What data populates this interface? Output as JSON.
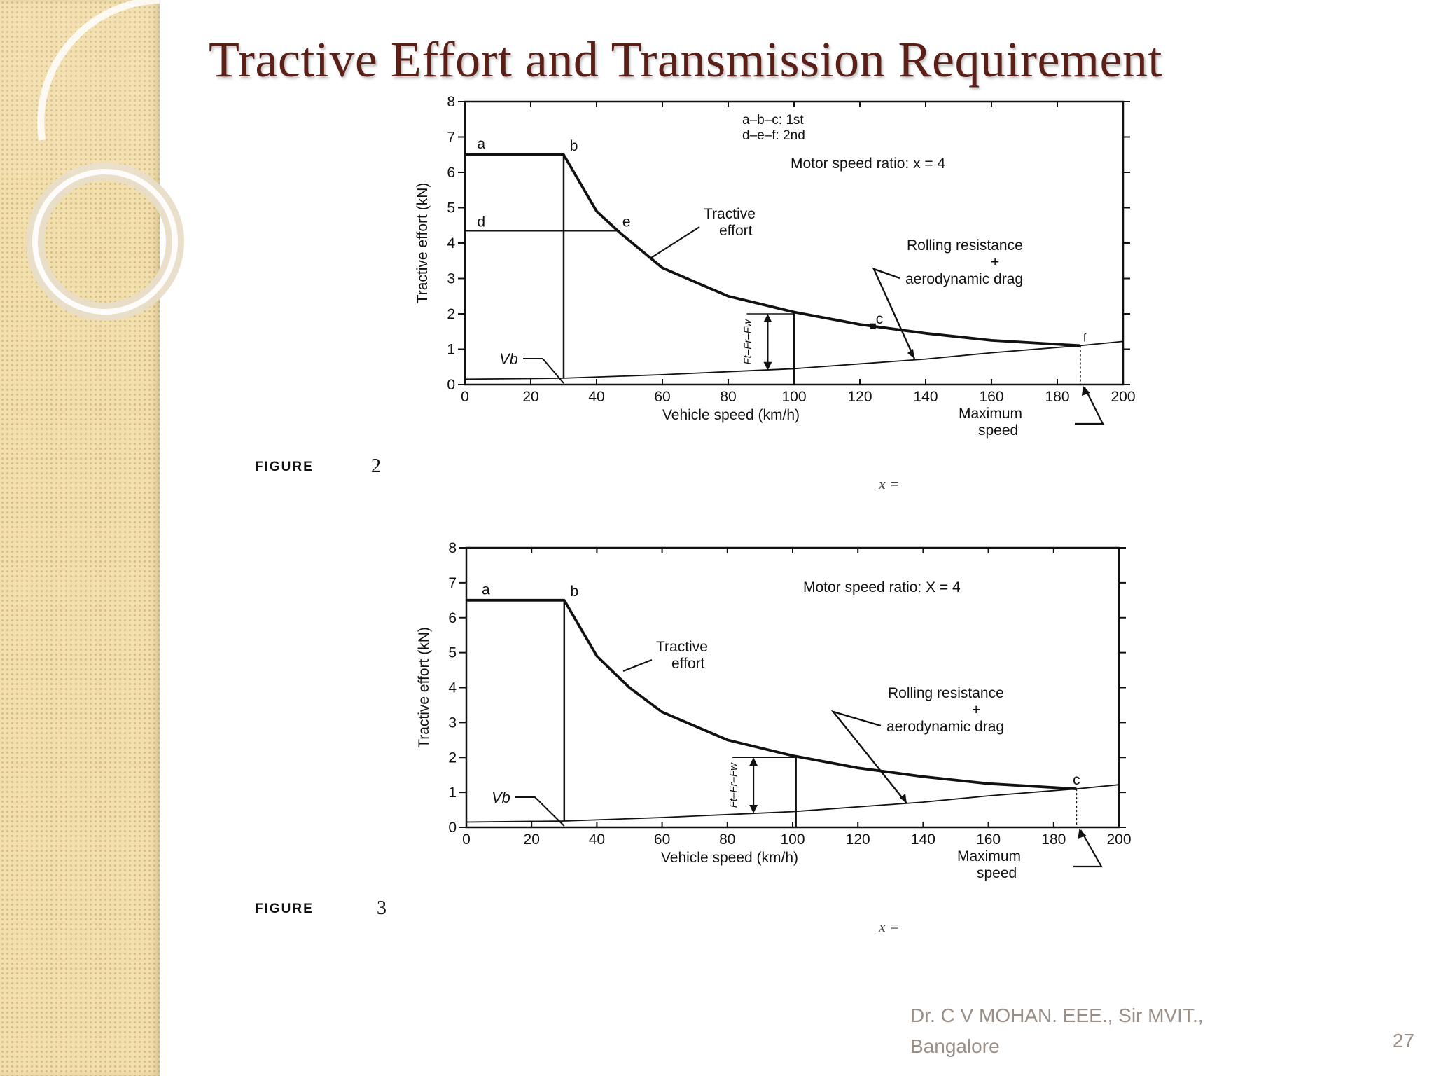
{
  "slide": {
    "title": "Tractive Effort and Transmission Requirement",
    "author_line1": "Dr.  C V MOHAN.  EEE., Sir MVIT.,",
    "author_line2": "Bangalore",
    "page_number": "27"
  },
  "figures": [
    {
      "label": "FIGURE",
      "number": "2",
      "x_caption": "x ="
    },
    {
      "label": "FIGURE",
      "number": "3",
      "x_caption": "x ="
    }
  ],
  "colors": {
    "title": "#5a1f17",
    "sidebar": "#f2dfae",
    "footer_text": "#9a8f86",
    "plot_ink": "#111111"
  },
  "chart_data": [
    {
      "type": "line",
      "ylabel": "Tractive effort (kN)",
      "xlabel": "Vehicle speed (km/h)",
      "xlim": [
        0,
        200
      ],
      "ylim": [
        0,
        8
      ],
      "xticks": [
        "0",
        "20",
        "40",
        "60",
        "80",
        "100",
        "120",
        "140",
        "160",
        "180",
        "200"
      ],
      "yticks": [
        "0",
        "1",
        "2",
        "3",
        "4",
        "5",
        "6",
        "7",
        "8"
      ],
      "legend_line1": "a–b–c:  1st",
      "legend_line2": "d–e–f:  2nd",
      "ratio_text": "Motor speed ratio: x = 4",
      "tractive_label_1": "Tractive",
      "tractive_label_2": "effort",
      "resistance_label_1": "Rolling resistance",
      "resistance_label_2": "+",
      "resistance_label_3": "aerodynamic drag",
      "vb_label": "Vb",
      "force_label": "Ft–Fr–Fw",
      "max_speed_1": "Maximum",
      "max_speed_2": "speed",
      "point_labels": [
        {
          "name": "a",
          "x": 2,
          "y": 6.55
        },
        {
          "name": "b",
          "x": 31,
          "y": 6.5
        },
        {
          "name": "c",
          "x": 124,
          "y": 1.6
        },
        {
          "name": "d",
          "x": 2,
          "y": 4.35
        },
        {
          "name": "e",
          "x": 47,
          "y": 4.35
        },
        {
          "name": "f",
          "x": 187,
          "y": 1.1
        }
      ],
      "series": [
        {
          "name": "Tractive effort",
          "x": [
            0,
            30,
            40,
            47,
            60,
            80,
            100,
            120,
            140,
            160,
            187
          ],
          "y": [
            6.5,
            6.5,
            4.9,
            4.3,
            3.3,
            2.5,
            2.05,
            1.7,
            1.45,
            1.25,
            1.1
          ]
        },
        {
          "name": "Rolling resistance + aerodynamic drag",
          "x": [
            0,
            30,
            60,
            100,
            140,
            160,
            187,
            200
          ],
          "y": [
            0.15,
            0.18,
            0.28,
            0.45,
            0.72,
            0.9,
            1.1,
            1.22
          ]
        },
        {
          "name": "2nd gear",
          "x": [
            0,
            47
          ],
          "y": [
            4.35,
            4.35
          ]
        }
      ],
      "base_speed_kmh": 30,
      "max_speed_kmh": 187,
      "ruler_speed_kmh": 100,
      "ruler_range": [
        0.45,
        2.05
      ],
      "dim_speed_kmh": 92,
      "dim_range": [
        0.4,
        2.0
      ]
    },
    {
      "type": "line",
      "ylabel": "Tractive effort (kN)",
      "xlabel": "Vehicle speed (km/h)",
      "xlim": [
        0,
        200
      ],
      "ylim": [
        0,
        8
      ],
      "xticks": [
        "0",
        "20",
        "40",
        "60",
        "80",
        "100",
        "120",
        "140",
        "160",
        "180",
        "200"
      ],
      "yticks": [
        "0",
        "1",
        "2",
        "3",
        "4",
        "5",
        "6",
        "7",
        "8"
      ],
      "ratio_text": "Motor speed ratio:  X = 4",
      "tractive_label_1": "Tractive",
      "tractive_label_2": "effort",
      "resistance_label_1": "Rolling resistance",
      "resistance_label_2": "+",
      "resistance_label_3": "aerodynamic drag",
      "vb_label": "Vb",
      "force_label": "Ft–Fr–Fw",
      "max_speed_1": "Maximum",
      "max_speed_2": "speed",
      "point_labels": [
        {
          "name": "a",
          "x": 3,
          "y": 6.55
        },
        {
          "name": "b",
          "x": 31,
          "y": 6.5
        },
        {
          "name": "c",
          "x": 185,
          "y": 1.1
        }
      ],
      "series": [
        {
          "name": "Tractive effort",
          "x": [
            0,
            30,
            40,
            50,
            60,
            80,
            100,
            120,
            140,
            160,
            187
          ],
          "y": [
            6.5,
            6.5,
            4.9,
            4.0,
            3.3,
            2.5,
            2.05,
            1.7,
            1.45,
            1.25,
            1.1
          ]
        },
        {
          "name": "Rolling resistance + aerodynamic drag",
          "x": [
            0,
            30,
            60,
            100,
            140,
            160,
            187,
            200
          ],
          "y": [
            0.15,
            0.18,
            0.28,
            0.45,
            0.72,
            0.9,
            1.1,
            1.22
          ]
        }
      ],
      "base_speed_kmh": 30,
      "max_speed_kmh": 187,
      "ruler_speed_kmh": 101,
      "ruler_range": [
        0.45,
        2.05
      ],
      "dim_speed_kmh": 88,
      "dim_range": [
        0.4,
        2.0
      ]
    }
  ]
}
